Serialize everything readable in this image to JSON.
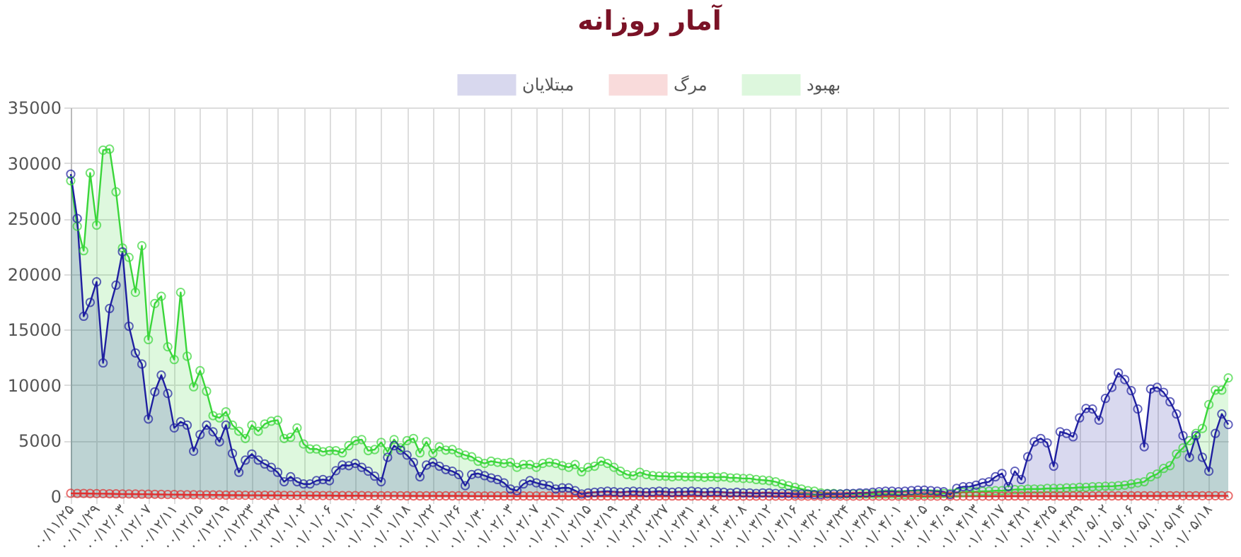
{
  "chart_data": {
    "type": "area",
    "title": "آمار روزانه",
    "categories": [
      "۰۰/۱۱/۲۵",
      null,
      null,
      null,
      "۰۰/۱۱/۲۹",
      null,
      null,
      null,
      "۰۰/۱۲/۰۳",
      null,
      null,
      null,
      "۰۰/۱۲/۰۷",
      null,
      null,
      null,
      "۰۰/۱۲/۱۱",
      null,
      null,
      null,
      "۰۰/۱۲/۱۵",
      null,
      null,
      null,
      "۰۰/۱۲/۱۹",
      null,
      null,
      null,
      "۰۰/۱۲/۲۳",
      null,
      null,
      null,
      "۰۰/۱۲/۲۷",
      null,
      null,
      null,
      "۰۱/۰۱/۰۲",
      null,
      null,
      null,
      "۰۱/۰۱/۰۶",
      null,
      null,
      null,
      "۰۱/۰۱/۱۰",
      null,
      null,
      null,
      "۰۱/۰۱/۱۴",
      null,
      null,
      null,
      "۰۱/۰۱/۱۸",
      null,
      null,
      null,
      "۰۱/۰۱/۲۲",
      null,
      null,
      null,
      "۰۱/۰۱/۲۶",
      null,
      null,
      null,
      "۰۱/۰۱/۳۰",
      null,
      null,
      null,
      "۰۱/۰۲/۰۳",
      null,
      null,
      null,
      "۰۱/۰۲/۰۷",
      null,
      null,
      null,
      "۰۱/۰۲/۱۱",
      null,
      null,
      null,
      "۰۱/۰۲/۱۵",
      null,
      null,
      null,
      "۰۱/۰۲/۱۹",
      null,
      null,
      null,
      "۰۱/۰۲/۲۳",
      null,
      null,
      null,
      "۰۱/۰۲/۲۷",
      null,
      null,
      null,
      "۰۱/۰۲/۳۱",
      null,
      null,
      null,
      "۰۱/۰۳/۰۴",
      null,
      null,
      null,
      "۰۱/۰۳/۰۸",
      null,
      null,
      null,
      "۰۱/۰۳/۱۲",
      null,
      null,
      null,
      "۰۱/۰۳/۱۶",
      null,
      null,
      null,
      "۰۱/۰۳/۲۰",
      null,
      null,
      null,
      "۰۱/۰۳/۲۴",
      null,
      null,
      null,
      "۰۱/۰۳/۲۸",
      null,
      null,
      null,
      "۰۱/۰۴/۰۱",
      null,
      null,
      null,
      "۰۱/۰۴/۰۵",
      null,
      null,
      null,
      "۰۱/۰۴/۰۹",
      null,
      null,
      null,
      "۰۱/۰۴/۱۳",
      null,
      null,
      null,
      "۰۱/۰۴/۱۷",
      null,
      null,
      null,
      "۰۱/۰۴/۲۱",
      null,
      null,
      null,
      "۰۱/۰۴/۲۵",
      null,
      null,
      null,
      "۰۱/۰۴/۲۹",
      null,
      null,
      null,
      "۰۱/۰۵/۰۲",
      null,
      null,
      null,
      "۰۱/۰۵/۰۶",
      null,
      null,
      null,
      "۰۱/۰۵/۱۰",
      null,
      null,
      null,
      "۰۱/۰۵/۱۴",
      null,
      null,
      null,
      "۰۱/۰۵/۱۸",
      null,
      null,
      null
    ],
    "series": [
      {
        "name": "مبتلایان",
        "color": "#1f1fa0",
        "values": [
          29000,
          25000,
          16200,
          17450,
          19300,
          12000,
          16900,
          19000,
          22000,
          15300,
          12900,
          11900,
          6950,
          9400,
          10900,
          9250,
          6150,
          6700,
          6400,
          4050,
          5550,
          6400,
          5800,
          4900,
          6400,
          3850,
          2150,
          3250,
          3800,
          3250,
          2900,
          2600,
          2150,
          1300,
          1750,
          1300,
          1100,
          1100,
          1400,
          1500,
          1400,
          2300,
          2800,
          2750,
          2950,
          2600,
          2250,
          1800,
          1300,
          3500,
          4550,
          4150,
          3700,
          3050,
          1750,
          2800,
          3050,
          2700,
          2400,
          2250,
          1950,
          950,
          1950,
          2050,
          1850,
          1650,
          1500,
          1200,
          650,
          500,
          1100,
          1400,
          1200,
          1050,
          950,
          650,
          750,
          750,
          500,
          200,
          300,
          350,
          400,
          450,
          400,
          350,
          400,
          450,
          400,
          350,
          400,
          450,
          400,
          350,
          400,
          400,
          450,
          400,
          350,
          400,
          400,
          350,
          300,
          350,
          300,
          300,
          250,
          300,
          300,
          250,
          250,
          250,
          200,
          200,
          200,
          150,
          150,
          200,
          200,
          200,
          250,
          250,
          300,
          300,
          350,
          400,
          450,
          450,
          400,
          450,
          500,
          550,
          550,
          500,
          450,
          400,
          150,
          700,
          850,
          870,
          1000,
          1200,
          1300,
          1750,
          2050,
          870,
          2250,
          1500,
          3550,
          4900,
          5200,
          4800,
          2700,
          5800,
          5650,
          5350,
          7050,
          7900,
          7850,
          6850,
          8800,
          9800,
          11100,
          10500,
          9500,
          7850,
          4450,
          9650,
          9800,
          9350,
          8500,
          7400,
          5450,
          3500,
          5450,
          3500,
          2250,
          5650,
          7400,
          6450
        ]
      },
      {
        "name": "مرگ",
        "color": "#e03030",
        "values": [
          260,
          250,
          250,
          240,
          230,
          230,
          220,
          210,
          200,
          200,
          190,
          180,
          180,
          170,
          160,
          150,
          150,
          140,
          130,
          130,
          120,
          120,
          110,
          110,
          100,
          100,
          100,
          90,
          90,
          90,
          80,
          80,
          80,
          70,
          70,
          70,
          70,
          60,
          60,
          60,
          60,
          50,
          50,
          50,
          50,
          50,
          40,
          40,
          40,
          40,
          40,
          40,
          30,
          30,
          30,
          30,
          30,
          30,
          30,
          30,
          30,
          30,
          20,
          20,
          20,
          20,
          20,
          20,
          20,
          20,
          20,
          20,
          20,
          20,
          20,
          20,
          20,
          20,
          20,
          20,
          20,
          20,
          20,
          20,
          20,
          20,
          20,
          20,
          20,
          20,
          20,
          20,
          20,
          20,
          20,
          20,
          20,
          20,
          10,
          10,
          10,
          10,
          10,
          10,
          10,
          10,
          10,
          10,
          10,
          10,
          10,
          10,
          10,
          10,
          10,
          10,
          10,
          10,
          10,
          10,
          10,
          10,
          10,
          10,
          10,
          10,
          10,
          10,
          10,
          10,
          10,
          10,
          10,
          10,
          10,
          10,
          10,
          10,
          10,
          10,
          10,
          10,
          10,
          10,
          10,
          20,
          20,
          20,
          20,
          20,
          20,
          20,
          20,
          20,
          20,
          20,
          20,
          20,
          20,
          30,
          30,
          30,
          30,
          30,
          30,
          30,
          30,
          30,
          30,
          30,
          40,
          40,
          40,
          40,
          40,
          40,
          40,
          40,
          40,
          40
        ]
      },
      {
        "name": "بهبود",
        "color": "#3ad63a",
        "values": [
          28400,
          24300,
          22100,
          29100,
          24400,
          31150,
          31250,
          27400,
          22350,
          21500,
          18350,
          22550,
          14100,
          17350,
          18000,
          13450,
          12300,
          18350,
          12600,
          9850,
          11300,
          9450,
          7250,
          7050,
          7600,
          6400,
          5850,
          5200,
          6400,
          5850,
          6500,
          6750,
          6850,
          5200,
          5300,
          6150,
          4700,
          4250,
          4250,
          4000,
          4100,
          4100,
          3900,
          4550,
          5000,
          5100,
          4100,
          4200,
          4850,
          4000,
          5100,
          4350,
          5000,
          5200,
          3900,
          4900,
          3850,
          4450,
          4150,
          4200,
          3900,
          3700,
          3550,
          3150,
          2950,
          3150,
          3050,
          2950,
          3050,
          2600,
          2850,
          2850,
          2600,
          2950,
          3050,
          2950,
          2750,
          2600,
          2850,
          2200,
          2600,
          2700,
          3150,
          2950,
          2600,
          2250,
          1950,
          1850,
          2150,
          1950,
          1850,
          1800,
          1800,
          1750,
          1800,
          1750,
          1750,
          1750,
          1700,
          1750,
          1700,
          1750,
          1650,
          1650,
          1600,
          1600,
          1500,
          1450,
          1400,
          1300,
          1100,
          950,
          800,
          650,
          500,
          450,
          300,
          250,
          250,
          200,
          200,
          200,
          200,
          200,
          200,
          200,
          200,
          200,
          150,
          150,
          150,
          150,
          200,
          200,
          200,
          250,
          250,
          300,
          350,
          400,
          400,
          450,
          450,
          500,
          500,
          550,
          600,
          600,
          650,
          650,
          650,
          700,
          700,
          700,
          750,
          750,
          800,
          800,
          850,
          870,
          900,
          900,
          950,
          1000,
          1100,
          1200,
          1300,
          1750,
          2000,
          2500,
          2750,
          3800,
          4350,
          5000,
          5650,
          6100,
          8250,
          9550,
          9550,
          10650
        ]
      }
    ],
    "ylim": [
      0,
      35000
    ],
    "yticks": [
      0,
      5000,
      10000,
      15000,
      20000,
      25000,
      30000,
      35000
    ],
    "grid": true,
    "legend": "top",
    "marker": "circle",
    "line_style": "solid"
  }
}
